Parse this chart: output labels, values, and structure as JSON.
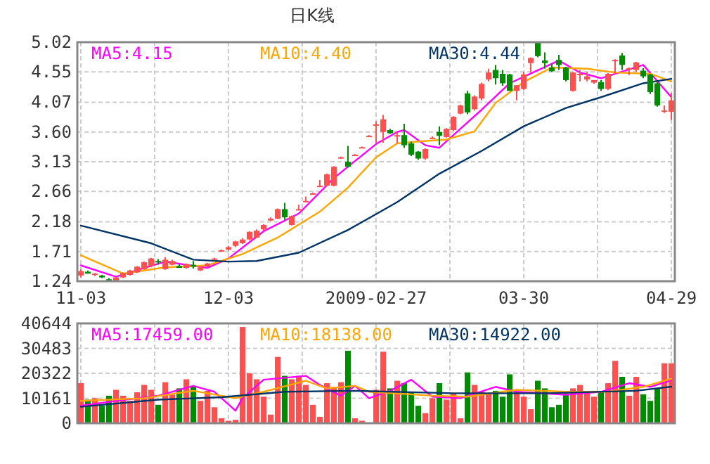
{
  "chart_data": [
    {
      "type": "candlestick",
      "title": "日K线",
      "legend": "top",
      "grid": true,
      "categories": [
        "11-03",
        null,
        null,
        null,
        null,
        null,
        null,
        null,
        null,
        null,
        null,
        null,
        null,
        null,
        null,
        null,
        null,
        null,
        null,
        null,
        null,
        "12-03",
        null,
        null,
        null,
        null,
        null,
        null,
        null,
        null,
        null,
        null,
        null,
        null,
        null,
        null,
        null,
        null,
        null,
        null,
        null,
        null,
        "2009-02-27",
        null,
        null,
        null,
        null,
        null,
        null,
        null,
        null,
        null,
        null,
        null,
        null,
        null,
        null,
        null,
        null,
        null,
        null,
        null,
        null,
        "03-30",
        null,
        null,
        null,
        null,
        null,
        null,
        null,
        null,
        null,
        null,
        null,
        null,
        null,
        null,
        null,
        null,
        null,
        null,
        null,
        null,
        "04-29"
      ],
      "ylim": [
        1.24,
        5.02
      ],
      "yticks": [
        1.24,
        1.71,
        2.18,
        2.66,
        3.13,
        {
          "value": 3.6,
          "label": "3.60"
        },
        4.07,
        4.55,
        5.02
      ],
      "ohlc": [
        [
          1.33,
          1.43,
          1.3,
          1.4
        ],
        [
          1.39,
          1.41,
          1.36,
          1.36
        ],
        [
          1.34,
          1.37,
          1.32,
          1.36
        ],
        [
          1.33,
          1.34,
          1.29,
          1.3
        ],
        [
          1.27,
          1.29,
          1.24,
          1.26
        ],
        [
          1.25,
          1.3,
          1.24,
          1.3
        ],
        [
          1.3,
          1.38,
          1.29,
          1.37
        ],
        [
          1.34,
          1.42,
          1.33,
          1.41
        ],
        [
          1.38,
          1.48,
          1.37,
          1.47
        ],
        [
          1.43,
          1.55,
          1.42,
          1.54
        ],
        [
          1.48,
          1.61,
          1.46,
          1.6
        ],
        [
          1.56,
          1.59,
          1.5,
          1.55
        ],
        [
          1.43,
          1.62,
          1.42,
          1.58
        ],
        [
          1.5,
          1.58,
          1.49,
          1.56
        ],
        [
          1.48,
          1.51,
          1.45,
          1.45
        ],
        [
          1.45,
          1.52,
          1.44,
          1.51
        ],
        [
          1.5,
          1.56,
          1.44,
          1.47
        ],
        [
          1.41,
          1.47,
          1.4,
          1.46
        ],
        [
          1.47,
          1.53,
          1.46,
          1.52
        ],
        [
          1.58,
          1.61,
          1.57,
          1.6
        ],
        [
          1.72,
          1.74,
          1.71,
          1.73
        ],
        [
          1.74,
          1.8,
          1.72,
          1.78
        ],
        [
          1.8,
          1.88,
          1.78,
          1.87
        ],
        [
          1.84,
          1.92,
          1.83,
          1.9
        ],
        [
          1.9,
          2.03,
          1.89,
          2.02
        ],
        [
          1.93,
          2.06,
          1.92,
          2.04
        ],
        [
          2.06,
          2.14,
          2.04,
          2.13
        ],
        [
          2.2,
          2.25,
          2.19,
          2.23
        ],
        [
          2.23,
          2.39,
          2.22,
          2.38
        ],
        [
          2.38,
          2.48,
          2.21,
          2.25
        ],
        [
          2.13,
          2.28,
          2.12,
          2.27
        ],
        [
          2.37,
          2.45,
          2.36,
          2.38
        ],
        [
          2.5,
          2.58,
          2.49,
          2.51
        ],
        [
          2.62,
          2.64,
          2.61,
          2.63
        ],
        [
          2.74,
          2.84,
          2.73,
          2.75
        ],
        [
          2.75,
          2.94,
          2.74,
          2.93
        ],
        [
          2.75,
          3.06,
          2.74,
          3.05
        ],
        [
          3.19,
          3.21,
          3.18,
          3.2
        ],
        [
          3.13,
          3.38,
          3.04,
          3.05
        ],
        [
          3.23,
          3.25,
          3.22,
          3.24
        ],
        [
          3.35,
          3.37,
          3.34,
          3.36
        ],
        [
          3.53,
          3.55,
          3.52,
          3.54
        ],
        [
          3.71,
          3.77,
          3.43,
          3.72
        ],
        [
          3.6,
          3.87,
          3.43,
          3.8
        ],
        [
          3.63,
          3.65,
          3.57,
          3.58
        ],
        [
          3.53,
          3.6,
          3.42,
          3.55
        ],
        [
          3.55,
          3.73,
          3.35,
          3.39
        ],
        [
          3.42,
          3.45,
          3.22,
          3.24
        ],
        [
          3.29,
          3.3,
          3.16,
          3.18
        ],
        [
          3.18,
          3.34,
          3.16,
          3.33
        ],
        [
          3.5,
          3.53,
          3.49,
          3.51
        ],
        [
          3.6,
          3.69,
          3.39,
          3.54
        ],
        [
          3.52,
          3.66,
          3.51,
          3.65
        ],
        [
          3.63,
          3.85,
          3.62,
          3.84
        ],
        [
          3.89,
          4.03,
          3.88,
          4.02
        ],
        [
          4.21,
          4.25,
          3.88,
          3.91
        ],
        [
          3.96,
          4.18,
          3.94,
          4.16
        ],
        [
          4.13,
          4.38,
          4.1,
          4.36
        ],
        [
          4.43,
          4.6,
          4.4,
          4.54
        ],
        [
          4.58,
          4.66,
          4.35,
          4.45
        ],
        [
          4.52,
          4.58,
          4.33,
          4.37
        ],
        [
          4.51,
          4.52,
          4.25,
          4.25
        ],
        [
          4.25,
          4.34,
          4.1,
          4.34
        ],
        [
          4.28,
          4.55,
          4.26,
          4.51
        ],
        [
          4.69,
          4.78,
          4.54,
          4.77
        ],
        [
          5.01,
          5.02,
          4.78,
          4.8
        ],
        [
          4.73,
          4.86,
          4.6,
          4.69
        ],
        [
          4.62,
          4.68,
          4.55,
          4.56
        ],
        [
          4.74,
          4.82,
          4.58,
          4.66
        ],
        [
          4.62,
          4.63,
          4.4,
          4.42
        ],
        [
          4.25,
          4.55,
          4.24,
          4.54
        ],
        [
          4.51,
          4.58,
          4.4,
          4.52
        ],
        [
          4.43,
          4.55,
          4.4,
          4.48
        ],
        [
          4.38,
          4.42,
          4.36,
          4.42
        ],
        [
          4.39,
          4.42,
          4.25,
          4.28
        ],
        [
          4.28,
          4.53,
          4.26,
          4.52
        ],
        [
          4.73,
          4.75,
          4.51,
          4.74
        ],
        [
          4.81,
          4.85,
          4.58,
          4.66
        ],
        [
          4.59,
          4.62,
          4.5,
          4.61
        ],
        [
          4.58,
          4.71,
          4.55,
          4.7
        ],
        [
          4.57,
          4.61,
          4.45,
          4.48
        ],
        [
          4.51,
          4.52,
          4.2,
          4.23
        ],
        [
          4.37,
          4.4,
          4.0,
          4.02
        ],
        [
          3.93,
          4.02,
          3.9,
          3.94
        ],
        [
          3.92,
          4.22,
          3.79,
          4.1
        ]
      ],
      "colors": [
        "#ff4f4f",
        "#008c00",
        "#ff4f4f",
        "#008c00",
        "#008c00",
        "#ff4f4f",
        "#ff4f4f",
        "#ff4f4f",
        "#ff4f4f",
        "#ff4f4f",
        "#ff4f4f",
        "#008c00",
        "#ff4f4f",
        "#ff4f4f",
        "#008c00",
        "#ff4f4f",
        "#008c00",
        "#ff4f4f",
        "#ff4f4f",
        "#ff4f4f",
        "#ff4f4f",
        "#ff4f4f",
        "#ff4f4f",
        "#ff4f4f",
        "#ff4f4f",
        "#ff4f4f",
        "#ff4f4f",
        "#ff4f4f",
        "#ff4f4f",
        "#008c00",
        "#ff4f4f",
        "#ff4f4f",
        "#ff4f4f",
        "#ff4f4f",
        "#ff4f4f",
        "#ff4f4f",
        "#ff4f4f",
        "#ff4f4f",
        "#008c00",
        "#ff4f4f",
        "#ff4f4f",
        "#ff4f4f",
        "#ff4f4f",
        "#ff4f4f",
        "#008c00",
        "#ff4f4f",
        "#008c00",
        "#008c00",
        "#008c00",
        "#ff4f4f",
        "#ff4f4f",
        "#008c00",
        "#ff4f4f",
        "#ff4f4f",
        "#ff4f4f",
        "#008c00",
        "#ff4f4f",
        "#ff4f4f",
        "#ff4f4f",
        "#008c00",
        "#008c00",
        "#008c00",
        "#ff4f4f",
        "#ff4f4f",
        "#ff4f4f",
        "#008c00",
        "#008c00",
        "#008c00",
        "#008c00",
        "#008c00",
        "#ff4f4f",
        "#ff4f4f",
        "#ff4f4f",
        "#ff4f4f",
        "#008c00",
        "#ff4f4f",
        "#ff4f4f",
        "#008c00",
        "#ff4f4f",
        "#ff4f4f",
        "#008c00",
        "#008c00",
        "#008c00",
        "#ff4f4f",
        "#ff4f4f"
      ],
      "series": [
        {
          "type": "line",
          "name": "MA5:4.15",
          "color": "#ff00ff",
          "values": [
            1.49,
            null,
            null,
            null,
            null,
            1.31,
            null,
            null,
            null,
            1.45,
            null,
            null,
            1.55,
            null,
            null,
            null,
            null,
            null,
            1.45,
            null,
            null,
            1.6,
            null,
            null,
            null,
            null,
            2.03,
            null,
            null,
            null,
            null,
            2.31,
            null,
            null,
            null,
            null,
            2.87,
            null,
            null,
            null,
            null,
            null,
            3.41,
            null,
            null,
            3.6,
            3.63,
            null,
            null,
            3.39,
            null,
            3.35,
            null,
            null,
            3.65,
            null,
            null,
            3.95,
            null,
            null,
            null,
            4.37,
            null,
            null,
            null,
            null,
            null,
            null,
            4.73,
            null,
            null,
            4.54,
            null,
            null,
            4.45,
            null,
            null,
            null,
            null,
            null,
            4.66,
            null,
            null,
            null,
            4.15
          ]
        },
        {
          "type": "line",
          "name": "MA10:4.40",
          "color": "#ffa500",
          "values": [
            1.65,
            null,
            null,
            null,
            null,
            null,
            1.36,
            null,
            null,
            null,
            null,
            null,
            1.46,
            null,
            null,
            null,
            null,
            null,
            1.49,
            null,
            null,
            null,
            null,
            1.67,
            null,
            null,
            null,
            null,
            1.93,
            null,
            null,
            null,
            null,
            null,
            2.34,
            null,
            null,
            null,
            2.72,
            null,
            null,
            null,
            3.2,
            null,
            null,
            3.42,
            null,
            null,
            3.45,
            null,
            null,
            null,
            3.48,
            null,
            null,
            null,
            3.61,
            null,
            null,
            4.06,
            null,
            null,
            null,
            4.39,
            null,
            null,
            null,
            4.62,
            null,
            null,
            null,
            null,
            4.6,
            null,
            null,
            null,
            4.54,
            null,
            null,
            null,
            null,
            4.52,
            null,
            null,
            4.4
          ]
        },
        {
          "type": "line",
          "name": "MA30:4.44",
          "color": "#003366",
          "values": [
            2.12,
            null,
            null,
            null,
            null,
            null,
            null,
            null,
            null,
            null,
            1.84,
            null,
            null,
            null,
            null,
            null,
            1.58,
            null,
            null,
            null,
            null,
            1.55,
            null,
            null,
            null,
            1.56,
            null,
            null,
            null,
            null,
            null,
            1.69,
            null,
            null,
            null,
            null,
            null,
            null,
            2.05,
            null,
            null,
            null,
            null,
            null,
            null,
            2.49,
            null,
            null,
            null,
            null,
            null,
            2.94,
            null,
            null,
            null,
            null,
            null,
            3.3,
            null,
            null,
            null,
            null,
            null,
            3.69,
            null,
            null,
            null,
            null,
            null,
            3.98,
            null,
            null,
            null,
            null,
            4.15,
            null,
            null,
            null,
            null,
            null,
            4.37,
            null,
            null,
            null,
            4.44
          ]
        }
      ]
    },
    {
      "type": "bar",
      "legend": "top",
      "grid": true,
      "tick_labels": "y",
      "categories": [
        null,
        null,
        null,
        null,
        null,
        null,
        null,
        null,
        null,
        null,
        null,
        null,
        null,
        null,
        null,
        null,
        null,
        null,
        null,
        null,
        null,
        null,
        null,
        null,
        null,
        null,
        null,
        null,
        null,
        null,
        null,
        null,
        null,
        null,
        null,
        null,
        null,
        null,
        null,
        null,
        null,
        null,
        null,
        null,
        null,
        null,
        null,
        null,
        null,
        null,
        null,
        null,
        null,
        null,
        null,
        null,
        null,
        null,
        null,
        null,
        null,
        null,
        null,
        null,
        null,
        null,
        null,
        null,
        null,
        null,
        null,
        null,
        null,
        null,
        null,
        null,
        null,
        null,
        null,
        null,
        null,
        null,
        null,
        null,
        null
      ],
      "ylim": [
        0,
        40644
      ],
      "yticks": [
        0,
        10161,
        20322,
        30483,
        40644
      ],
      "series": [
        {
          "type": "bar",
          "values": [
            16300,
            9600,
            10200,
            7100,
            11200,
            13600,
            11200,
            9100,
            12600,
            15600,
            13600,
            7500,
            16700,
            11600,
            14200,
            17900,
            15200,
            9100,
            13200,
            6500,
            2000,
            1000,
            1400,
            39200,
            20300,
            17900,
            10800,
            3500,
            27000,
            19300,
            17900,
            19300,
            15600,
            7500,
            2600,
            16300,
            14800,
            16700,
            29500,
            2000,
            1000,
            null,
            13600,
            29100,
            14200,
            17300,
            16300,
            12800,
            7100,
            4100,
            10200,
            16300,
            9600,
            12200,
            2000,
            20700,
            15600,
            12800,
            12200,
            13200,
            10800,
            19900,
            12800,
            10800,
            5700,
            17300,
            14200,
            6500,
            7500,
            12200,
            14200,
            15600,
            12800,
            10800,
            12800,
            16300,
            25400,
            18900,
            11200,
            18900,
            11800,
            9100,
            14200,
            24400,
            24400
          ],
          "colors": [
            "#ff4f4f",
            "#008c00",
            "#ff4f4f",
            "#008c00",
            "#008c00",
            "#ff4f4f",
            "#ff4f4f",
            "#ff4f4f",
            "#ff4f4f",
            "#ff4f4f",
            "#ff4f4f",
            "#008c00",
            "#ff4f4f",
            "#ff4f4f",
            "#008c00",
            "#ff4f4f",
            "#008c00",
            "#ff4f4f",
            "#ff4f4f",
            "#ff4f4f",
            "#ff4f4f",
            "#ff4f4f",
            "#ff4f4f",
            "#ff4f4f",
            "#ff4f4f",
            "#ff4f4f",
            "#ff4f4f",
            "#ff4f4f",
            "#ff4f4f",
            "#008c00",
            "#ff4f4f",
            "#ff4f4f",
            "#ff4f4f",
            "#ff4f4f",
            "#ff4f4f",
            "#ff4f4f",
            "#ff4f4f",
            "#ff4f4f",
            "#008c00",
            "#ff4f4f",
            "#ff4f4f",
            null,
            "#ff4f4f",
            "#ff4f4f",
            "#008c00",
            "#ff4f4f",
            "#008c00",
            "#008c00",
            "#008c00",
            "#ff4f4f",
            "#ff4f4f",
            "#008c00",
            "#ff4f4f",
            "#ff4f4f",
            "#ff4f4f",
            "#008c00",
            "#ff4f4f",
            "#ff4f4f",
            "#ff4f4f",
            "#008c00",
            "#008c00",
            "#008c00",
            "#ff4f4f",
            "#ff4f4f",
            "#ff4f4f",
            "#008c00",
            "#008c00",
            "#008c00",
            "#008c00",
            "#008c00",
            "#ff4f4f",
            "#ff4f4f",
            "#ff4f4f",
            "#ff4f4f",
            "#008c00",
            "#ff4f4f",
            "#ff4f4f",
            "#008c00",
            "#ff4f4f",
            "#ff4f4f",
            "#008c00",
            "#008c00",
            "#008c00",
            "#ff4f4f",
            "#ff4f4f"
          ]
        },
        {
          "type": "line",
          "name": "MA5:17459.00",
          "color": "#ff00ff",
          "values": [
            7100,
            null,
            null,
            null,
            null,
            9100,
            null,
            null,
            null,
            null,
            null,
            11200,
            null,
            null,
            null,
            null,
            15200,
            null,
            null,
            12800,
            null,
            null,
            5100,
            10200,
            null,
            null,
            17700,
            null,
            null,
            null,
            null,
            null,
            19300,
            null,
            15600,
            null,
            null,
            11200,
            null,
            15200,
            null,
            10200,
            null,
            null,
            13200,
            null,
            null,
            17700,
            null,
            null,
            10800,
            null,
            null,
            null,
            10200,
            null,
            null,
            null,
            null,
            14800,
            null,
            null,
            12800,
            null,
            null,
            null,
            null,
            null,
            null,
            11600,
            null,
            null,
            null,
            null,
            12800,
            null,
            null,
            null,
            16300,
            null,
            null,
            14800,
            null,
            null,
            17500
          ]
        },
        {
          "type": "line",
          "name": "MA10:18138.00",
          "color": "#ffa500",
          "values": [
            9100,
            null,
            null,
            null,
            null,
            null,
            null,
            null,
            null,
            10200,
            null,
            null,
            null,
            null,
            null,
            null,
            13200,
            null,
            null,
            null,
            null,
            null,
            10200,
            null,
            null,
            null,
            12800,
            null,
            null,
            null,
            null,
            null,
            17300,
            null,
            null,
            14200,
            null,
            null,
            null,
            15200,
            null,
            12800,
            null,
            null,
            null,
            null,
            null,
            null,
            null,
            null,
            11200,
            null,
            null,
            null,
            null,
            10800,
            null,
            null,
            null,
            null,
            null,
            null,
            13600,
            null,
            null,
            null,
            null,
            null,
            null,
            12800,
            null,
            null,
            null,
            null,
            null,
            12800,
            null,
            null,
            null,
            null,
            14800,
            null,
            null,
            null,
            18100
          ]
        },
        {
          "type": "line",
          "name": "MA30:14922.00",
          "color": "#003366",
          "values": [
            6700,
            null,
            null,
            null,
            null,
            null,
            null,
            null,
            null,
            null,
            null,
            9600,
            null,
            null,
            null,
            null,
            null,
            null,
            null,
            null,
            10600,
            null,
            null,
            null,
            null,
            null,
            null,
            null,
            null,
            12800,
            null,
            null,
            null,
            null,
            null,
            null,
            null,
            null,
            null,
            13200,
            null,
            null,
            null,
            null,
            null,
            null,
            null,
            null,
            null,
            null,
            null,
            null,
            null,
            12200,
            null,
            null,
            null,
            null,
            null,
            null,
            null,
            null,
            null,
            null,
            null,
            null,
            12200,
            null,
            null,
            null,
            null,
            null,
            null,
            null,
            null,
            null,
            null,
            null,
            null,
            13200,
            null,
            null,
            null,
            null,
            14900
          ]
        }
      ]
    }
  ]
}
